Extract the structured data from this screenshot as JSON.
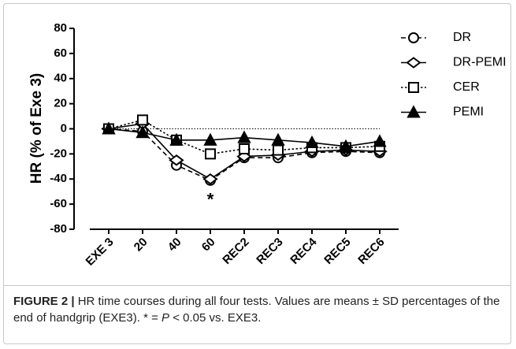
{
  "chart_data": {
    "type": "line",
    "ylabel": "HR (% of Exe 3)",
    "categories": [
      "EXE 3",
      "20",
      "40",
      "60",
      "REC2",
      "REC3",
      "REC4",
      "REC5",
      "REC6"
    ],
    "series": [
      {
        "name": "DR",
        "color": "#000000",
        "marker": "circle",
        "line_style": "dashed",
        "values": [
          0,
          -2,
          -29,
          -41,
          -23,
          -23,
          -19,
          -18,
          -19
        ]
      },
      {
        "name": "DR-PEMI",
        "color": "#000000",
        "marker": "diamond",
        "line_style": "solid",
        "values": [
          0,
          4,
          -25,
          -40,
          -22,
          -21,
          -18,
          -17,
          -18
        ]
      },
      {
        "name": "CER",
        "color": "#000000",
        "marker": "square",
        "line_style": "dotted",
        "values": [
          0,
          7,
          -9,
          -20,
          -16,
          -17,
          -15,
          -15,
          -14
        ]
      },
      {
        "name": "PEMI",
        "color": "#000000",
        "marker": "triangle",
        "line_style": "solid",
        "values": [
          0,
          -3,
          -9,
          -9,
          -7,
          -9,
          -11,
          -14,
          -10
        ]
      }
    ],
    "ylim": [
      -80,
      80
    ],
    "yticks": [
      -80,
      -60,
      -40,
      -20,
      0,
      20,
      40,
      60,
      80
    ],
    "reference_line": 0,
    "annotations": [
      {
        "text": "*",
        "category": "60"
      }
    ],
    "legend": "right"
  },
  "caption": {
    "label": "FIGURE 2 |",
    "text1": " HR time courses during all four tests. Values are means ± SD percentages of the end of handgrip (EXE3). * = ",
    "italic": "P",
    "text2": " < 0.05 vs. EXE3."
  }
}
